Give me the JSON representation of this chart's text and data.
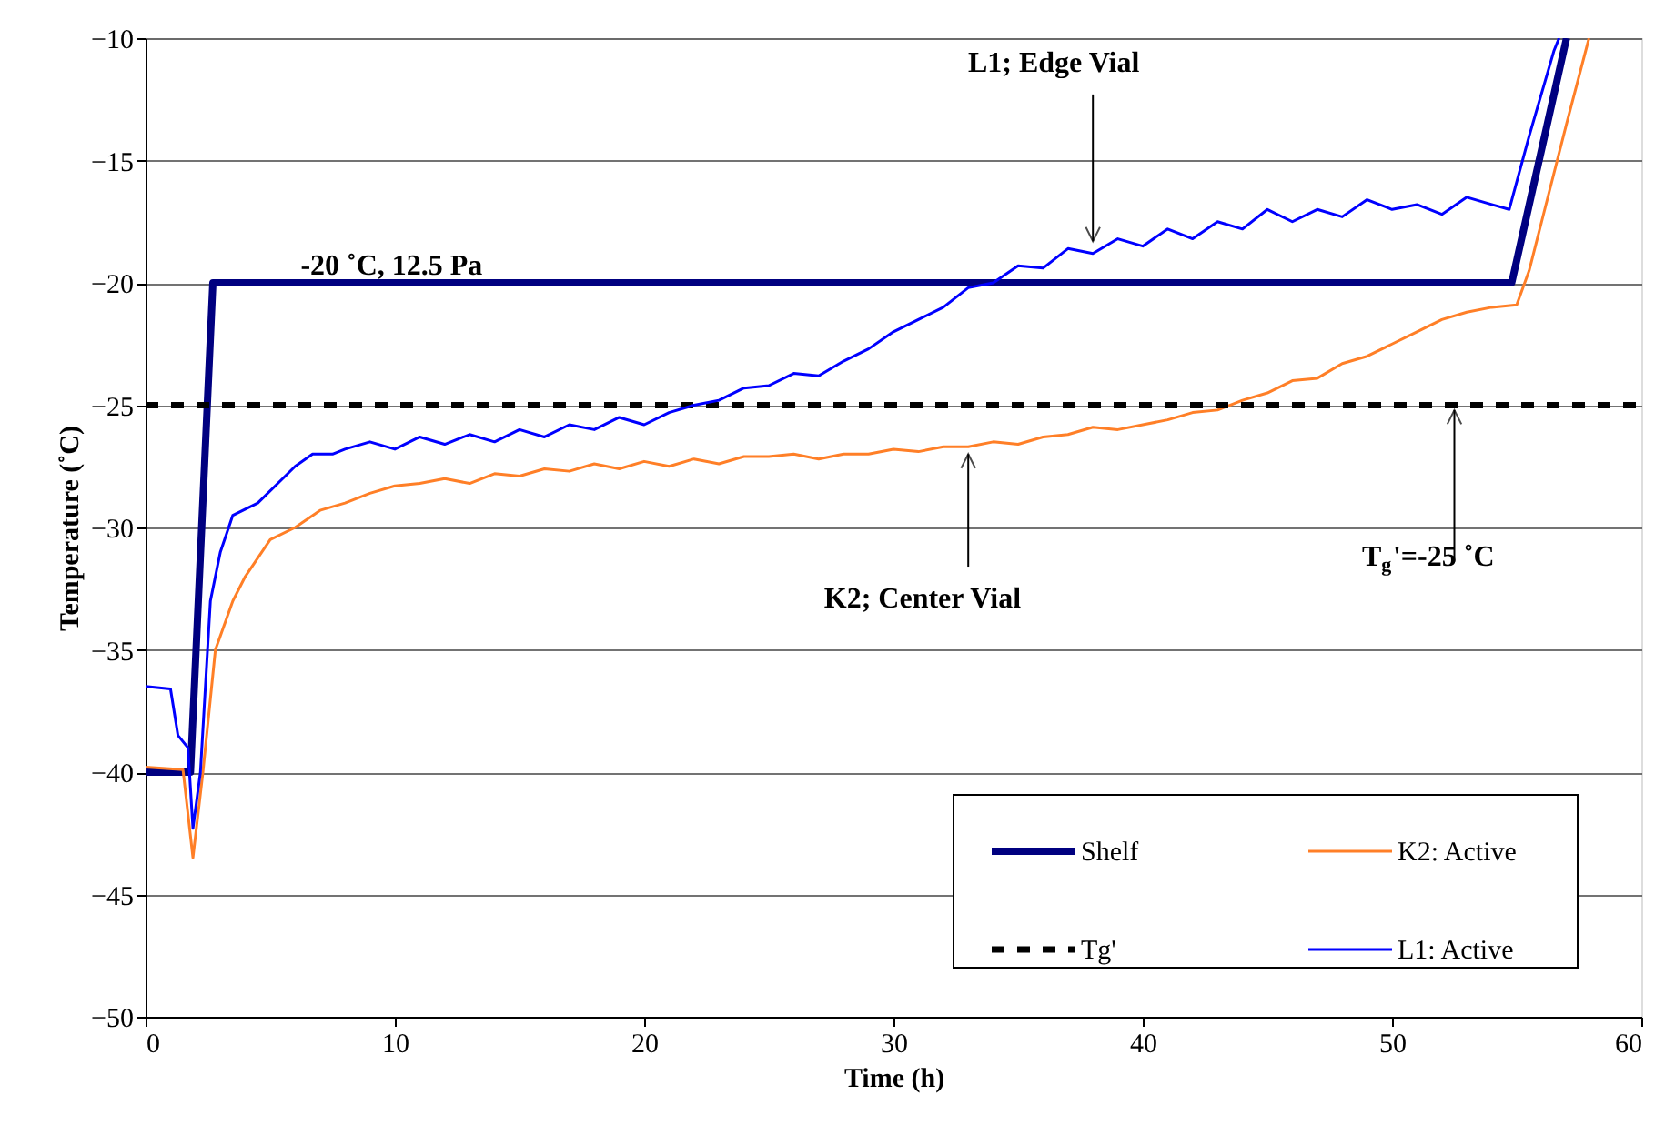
{
  "chart_data": {
    "type": "line",
    "xlabel": "Time (h)",
    "ylabel": "Temperature (˚C)",
    "xlim": [
      0,
      60
    ],
    "xticks": [
      0,
      10,
      20,
      30,
      40,
      50,
      60
    ],
    "ylim": [
      -50,
      -10
    ],
    "yticks": [
      -50,
      -45,
      -40,
      -35,
      -30,
      -25,
      -20,
      -15,
      -10
    ],
    "grid": "y",
    "legend": "bottom right",
    "marker": "none",
    "annotations": [
      {
        "text": "-20 ˚C, 12.5 Pa",
        "x": 12,
        "y": -20
      },
      {
        "text": "L1; Edge Vial",
        "x": 38,
        "y": -18.6
      },
      {
        "text": "K2; Center Vial",
        "x": 33,
        "y": -26.7
      },
      {
        "text": "T$_{g}$'=-25 ˚C",
        "x": 52.5,
        "y": -25
      }
    ],
    "series": [
      {
        "name": "Shelf",
        "color": "#000080",
        "line_style": "solid",
        "x": [
          0,
          1.8,
          2.7,
          54.8,
          57
        ],
        "values": [
          -40,
          -40,
          -20,
          -20,
          -10
        ]
      },
      {
        "name": "K2: Active",
        "color": "#ff7f27",
        "line_style": "solid",
        "x": [
          0,
          1.5,
          1.9,
          2.3,
          2.8,
          3.5,
          4,
          5,
          6,
          7,
          8,
          9,
          10,
          11,
          12,
          13,
          14,
          15,
          16,
          17,
          18,
          19,
          20,
          21,
          22,
          23,
          24,
          25,
          26,
          27,
          28,
          29,
          30,
          31,
          32,
          33,
          34,
          35,
          36,
          37,
          38,
          39,
          40,
          41,
          42,
          43,
          44,
          45,
          46,
          47,
          48,
          49,
          50,
          51,
          52,
          53,
          54,
          55,
          55.5,
          56,
          57,
          57.9
        ],
        "values": [
          -39.8,
          -39.9,
          -43.5,
          -40,
          -35,
          -33,
          -32,
          -30.5,
          -30,
          -29.3,
          -29,
          -28.6,
          -28.3,
          -28.2,
          -28,
          -28.2,
          -27.8,
          -27.9,
          -27.6,
          -27.7,
          -27.4,
          -27.6,
          -27.3,
          -27.5,
          -27.2,
          -27.4,
          -27.1,
          -27.1,
          -27,
          -27.2,
          -27,
          -27,
          -26.8,
          -26.9,
          -26.7,
          -26.7,
          -26.5,
          -26.6,
          -26.3,
          -26.2,
          -25.9,
          -26,
          -25.8,
          -25.6,
          -25.3,
          -25.2,
          -24.8,
          -24.5,
          -24,
          -23.9,
          -23.3,
          -23,
          -22.5,
          -22,
          -21.5,
          -21.2,
          -21,
          -20.9,
          -19.5,
          -17.5,
          -13.5,
          -10
        ]
      },
      {
        "name": "Tg'",
        "color": "#000000",
        "line_style": "dashed",
        "x": [
          0,
          60
        ],
        "values": [
          -25,
          -25
        ]
      },
      {
        "name": "L1: Active",
        "color": "#0000ff",
        "line_style": "solid",
        "x": [
          0,
          1,
          1.3,
          1.7,
          1.9,
          2.2,
          2.6,
          3,
          3.5,
          4.5,
          5.5,
          6,
          6.7,
          7.5,
          8,
          9,
          10,
          11,
          12,
          13,
          14,
          15,
          16,
          17,
          18,
          19,
          20,
          21,
          22,
          23,
          24,
          25,
          26,
          27,
          28,
          29,
          30,
          31,
          32,
          33,
          34,
          35,
          36,
          37,
          38,
          39,
          40,
          41,
          42,
          43,
          44,
          45,
          46,
          47,
          48,
          49,
          50,
          51,
          52,
          53,
          54,
          54.7,
          55.5,
          56.5,
          56.7
        ],
        "values": [
          -36.5,
          -36.6,
          -38.5,
          -39,
          -42.3,
          -40,
          -33,
          -31,
          -29.5,
          -29,
          -28,
          -27.5,
          -27,
          -27,
          -26.8,
          -26.5,
          -26.8,
          -26.3,
          -26.6,
          -26.2,
          -26.5,
          -26,
          -26.3,
          -25.8,
          -26,
          -25.5,
          -25.8,
          -25.3,
          -25,
          -24.8,
          -24.3,
          -24.2,
          -23.7,
          -23.8,
          -23.2,
          -22.7,
          -22,
          -21.5,
          -21,
          -20.2,
          -20,
          -19.3,
          -19.4,
          -18.6,
          -18.8,
          -18.2,
          -18.5,
          -17.8,
          -18.2,
          -17.5,
          -17.8,
          -17,
          -17.5,
          -17,
          -17.3,
          -16.6,
          -17,
          -16.8,
          -17.2,
          -16.5,
          -16.8,
          -17,
          -14,
          -10.5,
          -10
        ]
      }
    ]
  }
}
